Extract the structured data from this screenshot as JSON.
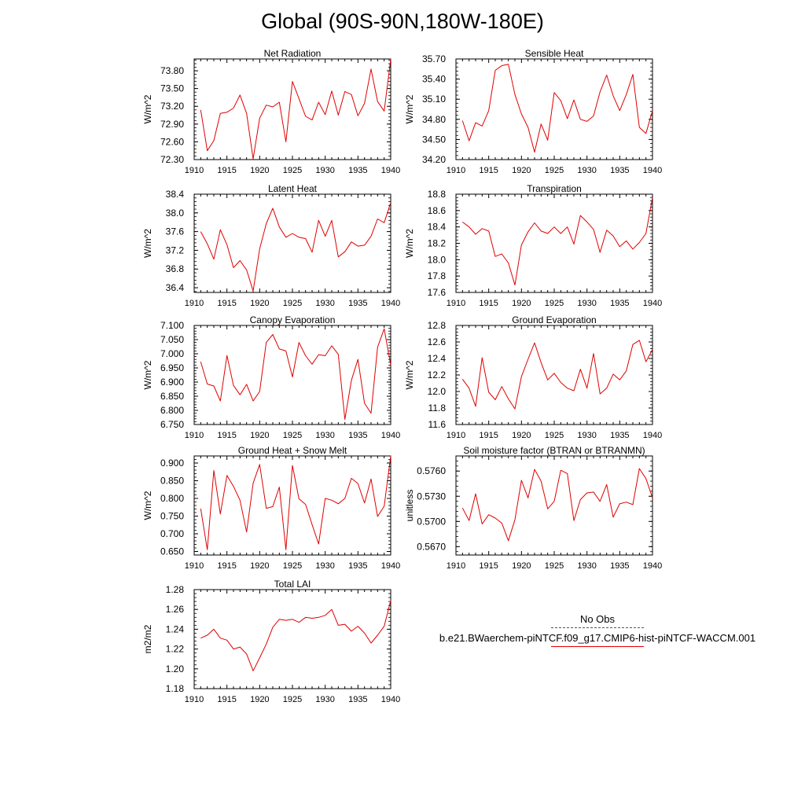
{
  "figure": {
    "title": "Global (90S-90N,180W-180E)"
  },
  "legend": {
    "entries": [
      {
        "label": "No Obs",
        "style": "dashed",
        "color": "#555555"
      },
      {
        "label": "b.e21.BWaerchem-piNTCF.f09_g17.CMIP6-hist-piNTCF-WACCM.001",
        "style": "solid",
        "color": "#e00000"
      }
    ]
  },
  "colors": {
    "series": "#e00000",
    "axes": "#000000"
  },
  "chart_data": [
    {
      "type": "line",
      "title": "Net Radiation",
      "ylabel": "W/m^2",
      "xlim": [
        1910,
        1940
      ],
      "ylim": [
        72.3,
        74.0
      ],
      "xticks": [
        "1910",
        "1915",
        "1920",
        "1925",
        "1930",
        "1935",
        "1940"
      ],
      "yticks": [
        "72.30",
        "72.60",
        "72.90",
        "73.20",
        "73.50",
        "73.80"
      ],
      "x": [
        1911,
        1912,
        1913,
        1914,
        1915,
        1916,
        1917,
        1918,
        1919,
        1920,
        1921,
        1922,
        1923,
        1924,
        1925,
        1926,
        1927,
        1928,
        1929,
        1930,
        1931,
        1932,
        1933,
        1934,
        1935,
        1936,
        1937,
        1938,
        1939,
        1940
      ],
      "series": [
        {
          "values": [
            73.14,
            72.45,
            72.62,
            73.08,
            73.1,
            73.17,
            73.39,
            73.08,
            72.31,
            73.0,
            73.22,
            73.19,
            73.27,
            72.6,
            73.62,
            73.33,
            73.03,
            72.97,
            73.27,
            73.06,
            73.46,
            73.05,
            73.45,
            73.4,
            73.04,
            73.25,
            73.83,
            73.28,
            73.12,
            74.0
          ]
        }
      ]
    },
    {
      "type": "line",
      "title": "Sensible Heat",
      "ylabel": "W/m^2",
      "xlim": [
        1910,
        1940
      ],
      "ylim": [
        34.2,
        35.7
      ],
      "xticks": [
        "1910",
        "1915",
        "1920",
        "1925",
        "1930",
        "1935",
        "1940"
      ],
      "yticks": [
        "34.20",
        "34.50",
        "34.80",
        "35.10",
        "35.40",
        "35.70"
      ],
      "x": [
        1911,
        1912,
        1913,
        1914,
        1915,
        1916,
        1917,
        1918,
        1919,
        1920,
        1921,
        1922,
        1923,
        1924,
        1925,
        1926,
        1927,
        1928,
        1929,
        1930,
        1931,
        1932,
        1933,
        1934,
        1935,
        1936,
        1937,
        1938,
        1939,
        1940
      ],
      "series": [
        {
          "values": [
            34.78,
            34.48,
            34.75,
            34.7,
            34.93,
            35.53,
            35.6,
            35.62,
            35.17,
            34.88,
            34.68,
            34.31,
            34.73,
            34.49,
            35.2,
            35.08,
            34.81,
            35.09,
            34.8,
            34.77,
            34.85,
            35.21,
            35.46,
            35.15,
            34.93,
            35.17,
            35.47,
            34.68,
            34.59,
            34.93
          ]
        }
      ]
    },
    {
      "type": "line",
      "title": "Latent Heat",
      "ylabel": "W/m^2",
      "xlim": [
        1910,
        1940
      ],
      "ylim": [
        36.3,
        38.4
      ],
      "xticks": [
        "1910",
        "1915",
        "1920",
        "1925",
        "1930",
        "1935",
        "1940"
      ],
      "yticks": [
        "36.4",
        "36.8",
        "37.2",
        "37.6",
        "38.0",
        "38.4"
      ],
      "x": [
        1911,
        1912,
        1913,
        1914,
        1915,
        1916,
        1917,
        1918,
        1919,
        1920,
        1921,
        1922,
        1923,
        1924,
        1925,
        1926,
        1927,
        1928,
        1929,
        1930,
        1931,
        1932,
        1933,
        1934,
        1935,
        1936,
        1937,
        1938,
        1939,
        1940
      ],
      "series": [
        {
          "values": [
            37.6,
            37.34,
            37.01,
            37.64,
            37.32,
            36.83,
            36.98,
            36.78,
            36.33,
            37.23,
            37.77,
            38.1,
            37.7,
            37.48,
            37.56,
            37.48,
            37.45,
            37.16,
            37.84,
            37.5,
            37.84,
            37.06,
            37.17,
            37.38,
            37.29,
            37.31,
            37.5,
            37.87,
            37.79,
            38.22
          ]
        }
      ]
    },
    {
      "type": "line",
      "title": "Transpiration",
      "ylabel": "W/m^2",
      "xlim": [
        1910,
        1940
      ],
      "ylim": [
        17.6,
        18.8
      ],
      "xticks": [
        "1910",
        "1915",
        "1920",
        "1925",
        "1930",
        "1935",
        "1940"
      ],
      "yticks": [
        "17.6",
        "17.8",
        "18.0",
        "18.2",
        "18.4",
        "18.6",
        "18.8"
      ],
      "x": [
        1911,
        1912,
        1913,
        1914,
        1915,
        1916,
        1917,
        1918,
        1919,
        1920,
        1921,
        1922,
        1923,
        1924,
        1925,
        1926,
        1927,
        1928,
        1929,
        1930,
        1931,
        1932,
        1933,
        1934,
        1935,
        1936,
        1937,
        1938,
        1939,
        1940
      ],
      "series": [
        {
          "values": [
            18.46,
            18.4,
            18.31,
            18.38,
            18.35,
            18.04,
            18.07,
            17.96,
            17.69,
            18.18,
            18.34,
            18.45,
            18.35,
            18.32,
            18.4,
            18.32,
            18.4,
            18.19,
            18.54,
            18.46,
            18.37,
            18.09,
            18.36,
            18.29,
            18.16,
            18.23,
            18.13,
            18.21,
            18.32,
            18.76
          ]
        }
      ]
    },
    {
      "type": "line",
      "title": "Canopy Evaporation",
      "ylabel": "W/m^2",
      "xlim": [
        1910,
        1940
      ],
      "ylim": [
        6.75,
        7.1
      ],
      "xticks": [
        "1910",
        "1915",
        "1920",
        "1925",
        "1930",
        "1935",
        "1940"
      ],
      "yticks": [
        "6.750",
        "6.800",
        "6.850",
        "6.900",
        "6.950",
        "7.000",
        "7.050",
        "7.100"
      ],
      "x": [
        1911,
        1912,
        1913,
        1914,
        1915,
        1916,
        1917,
        1918,
        1919,
        1920,
        1921,
        1922,
        1923,
        1924,
        1925,
        1926,
        1927,
        1928,
        1929,
        1930,
        1931,
        1932,
        1933,
        1934,
        1935,
        1936,
        1937,
        1938,
        1939,
        1940
      ],
      "series": [
        {
          "values": [
            6.972,
            6.893,
            6.886,
            6.833,
            6.994,
            6.888,
            6.855,
            6.892,
            6.833,
            6.867,
            7.04,
            7.068,
            7.017,
            7.01,
            6.918,
            7.04,
            6.993,
            6.963,
            6.997,
            6.993,
            7.028,
            6.998,
            6.768,
            6.906,
            6.98,
            6.825,
            6.79,
            7.023,
            7.088,
            6.96
          ]
        }
      ]
    },
    {
      "type": "line",
      "title": "Ground Evaporation",
      "ylabel": "W/m^2",
      "xlim": [
        1910,
        1940
      ],
      "ylim": [
        11.6,
        12.8
      ],
      "xticks": [
        "1910",
        "1915",
        "1920",
        "1925",
        "1930",
        "1935",
        "1940"
      ],
      "yticks": [
        "11.6",
        "11.8",
        "12.0",
        "12.2",
        "12.4",
        "12.6",
        "12.8"
      ],
      "x": [
        1911,
        1912,
        1913,
        1914,
        1915,
        1916,
        1917,
        1918,
        1919,
        1920,
        1921,
        1922,
        1923,
        1924,
        1925,
        1926,
        1927,
        1928,
        1929,
        1930,
        1931,
        1932,
        1933,
        1934,
        1935,
        1936,
        1937,
        1938,
        1939,
        1940
      ],
      "series": [
        {
          "values": [
            12.15,
            12.04,
            11.82,
            12.41,
            11.99,
            11.9,
            12.06,
            11.91,
            11.79,
            12.18,
            12.39,
            12.59,
            12.35,
            12.14,
            12.22,
            12.11,
            12.04,
            12.01,
            12.27,
            12.04,
            12.46,
            11.97,
            12.04,
            12.21,
            12.14,
            12.25,
            12.57,
            12.62,
            12.36,
            12.51
          ]
        }
      ]
    },
    {
      "type": "line",
      "title": "Ground Heat + Snow Melt",
      "ylabel": "W/m^2",
      "xlim": [
        1910,
        1940
      ],
      "ylim": [
        0.64,
        0.92
      ],
      "xticks": [
        "1910",
        "1915",
        "1920",
        "1925",
        "1930",
        "1935",
        "1940"
      ],
      "yticks": [
        "0.650",
        "0.700",
        "0.750",
        "0.800",
        "0.850",
        "0.900"
      ],
      "x": [
        1911,
        1912,
        1913,
        1914,
        1915,
        1916,
        1917,
        1918,
        1919,
        1920,
        1921,
        1922,
        1923,
        1924,
        1925,
        1926,
        1927,
        1928,
        1929,
        1930,
        1931,
        1932,
        1933,
        1934,
        1935,
        1936,
        1937,
        1938,
        1939,
        1940
      ],
      "series": [
        {
          "values": [
            0.771,
            0.655,
            0.879,
            0.756,
            0.865,
            0.834,
            0.795,
            0.705,
            0.843,
            0.896,
            0.772,
            0.777,
            0.832,
            0.655,
            0.893,
            0.799,
            0.783,
            0.726,
            0.671,
            0.8,
            0.795,
            0.785,
            0.8,
            0.857,
            0.842,
            0.787,
            0.855,
            0.749,
            0.778,
            0.92
          ]
        }
      ]
    },
    {
      "type": "line",
      "title": "Soil moisture factor (BTRAN or BTRANMN)",
      "ylabel": "unitless",
      "xlim": [
        1910,
        1940
      ],
      "ylim": [
        0.566,
        0.5778
      ],
      "xticks": [
        "1910",
        "1915",
        "1920",
        "1925",
        "1930",
        "1935",
        "1940"
      ],
      "yticks": [
        "0.5670",
        "0.5700",
        "0.5730",
        "0.5760"
      ],
      "x": [
        1911,
        1912,
        1913,
        1914,
        1915,
        1916,
        1917,
        1918,
        1919,
        1920,
        1921,
        1922,
        1923,
        1924,
        1925,
        1926,
        1927,
        1928,
        1929,
        1930,
        1931,
        1932,
        1933,
        1934,
        1935,
        1936,
        1937,
        1938,
        1939,
        1940
      ],
      "series": [
        {
          "values": [
            0.5716,
            0.5701,
            0.5733,
            0.5697,
            0.5708,
            0.5704,
            0.5698,
            0.5677,
            0.5702,
            0.5749,
            0.5728,
            0.5762,
            0.5748,
            0.5715,
            0.5724,
            0.5761,
            0.5757,
            0.5701,
            0.5726,
            0.5734,
            0.5735,
            0.5724,
            0.5744,
            0.5705,
            0.5721,
            0.5723,
            0.572,
            0.5763,
            0.5751,
            0.5728
          ]
        }
      ]
    },
    {
      "type": "line",
      "title": "Total LAI",
      "ylabel": "m2/m2",
      "xlim": [
        1910,
        1940
      ],
      "ylim": [
        1.18,
        1.28
      ],
      "xticks": [
        "1910",
        "1915",
        "1920",
        "1925",
        "1930",
        "1935",
        "1940"
      ],
      "yticks": [
        "1.18",
        "1.20",
        "1.22",
        "1.24",
        "1.26",
        "1.28"
      ],
      "x": [
        1911,
        1912,
        1913,
        1914,
        1915,
        1916,
        1917,
        1918,
        1919,
        1920,
        1921,
        1922,
        1923,
        1924,
        1925,
        1926,
        1927,
        1928,
        1929,
        1930,
        1931,
        1932,
        1933,
        1934,
        1935,
        1936,
        1937,
        1938,
        1939,
        1940
      ],
      "series": [
        {
          "values": [
            1.231,
            1.234,
            1.24,
            1.231,
            1.229,
            1.22,
            1.222,
            1.215,
            1.198,
            1.211,
            1.225,
            1.242,
            1.25,
            1.249,
            1.25,
            1.247,
            1.252,
            1.251,
            1.252,
            1.254,
            1.26,
            1.244,
            1.245,
            1.238,
            1.243,
            1.236,
            1.226,
            1.234,
            1.243,
            1.269
          ]
        }
      ]
    }
  ]
}
